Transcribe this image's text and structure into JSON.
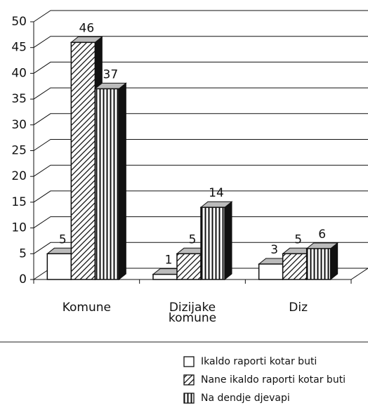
{
  "chart_data": {
    "type": "bar3d",
    "categories": [
      "Komune",
      "Dizijake komune",
      "Diz"
    ],
    "series": [
      {
        "name": "Ikaldo raporti kotar buti",
        "color": "#ffffff",
        "pattern": "none",
        "values": [
          5,
          1,
          3
        ]
      },
      {
        "name": "Nane ikaldo raporti kotar buti",
        "color": "#ffffff",
        "pattern": "diagonal",
        "values": [
          46,
          5,
          5
        ]
      },
      {
        "name": "Na dendje djevapi",
        "color": "#ffffff",
        "pattern": "vertical",
        "values": [
          37,
          14,
          6
        ]
      }
    ],
    "ylim": [
      0,
      50
    ],
    "yticks": [
      0,
      5,
      10,
      15,
      20,
      25,
      30,
      35,
      40,
      45,
      50
    ],
    "grid": true,
    "legend": "bottom-right"
  }
}
